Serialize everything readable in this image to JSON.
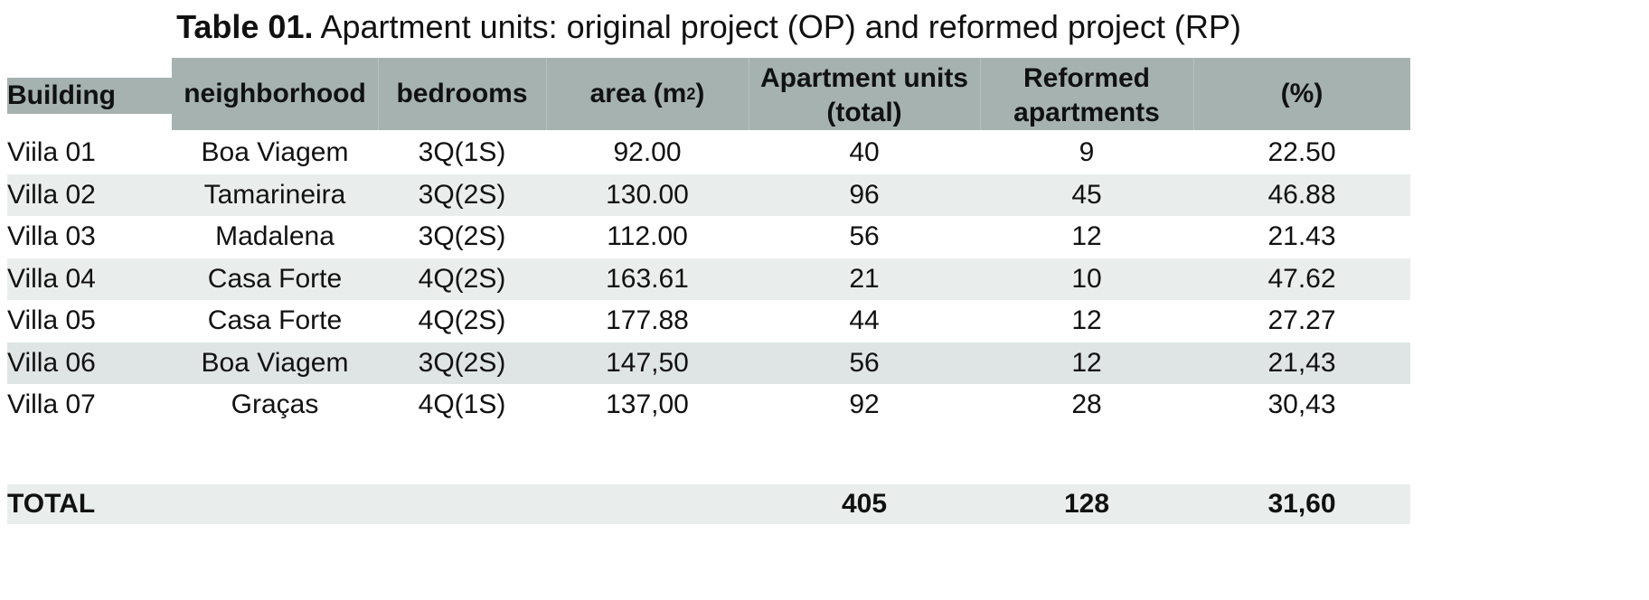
{
  "caption": {
    "label": "Table 01.",
    "text": "Apartment units: original project (OP) and reformed project (RP)"
  },
  "table": {
    "headers": {
      "building": "Building",
      "neighborhood": "neighborhood",
      "bedrooms": "bedrooms",
      "area": "area (m",
      "area_sup": "2",
      "area_close": ")",
      "units_line1": "Apartment units",
      "units_line2": "(total)",
      "reformed_line1": "Reformed",
      "reformed_line2": "apartments",
      "percent": "(%)"
    },
    "rows": [
      {
        "building": "Viila 01",
        "neighborhood": "Boa Viagem",
        "bedrooms": "3Q(1S)",
        "area": "92.00",
        "units": "40",
        "reformed": "9",
        "percent": "22.50"
      },
      {
        "building": "Villa 02",
        "neighborhood": "Tamarineira",
        "bedrooms": "3Q(2S)",
        "area": "130.00",
        "units": "96",
        "reformed": "45",
        "percent": "46.88"
      },
      {
        "building": "Villa 03",
        "neighborhood": "Madalena",
        "bedrooms": "3Q(2S)",
        "area": "112.00",
        "units": "56",
        "reformed": "12",
        "percent": "21.43"
      },
      {
        "building": "Villa 04",
        "neighborhood": "Casa Forte",
        "bedrooms": "4Q(2S)",
        "area": "163.61",
        "units": "21",
        "reformed": "10",
        "percent": "47.62"
      },
      {
        "building": "Villa 05",
        "neighborhood": "Casa Forte",
        "bedrooms": "4Q(2S)",
        "area": "177.88",
        "units": "44",
        "reformed": "12",
        "percent": "27.27"
      },
      {
        "building": "Villa 06",
        "neighborhood": "Boa Viagem",
        "bedrooms": "3Q(2S)",
        "area": "147,50",
        "units": "56",
        "reformed": "12",
        "percent": "21,43"
      },
      {
        "building": "Villa 07",
        "neighborhood": "Graças",
        "bedrooms": "4Q(1S)",
        "area": "137,00",
        "units": "92",
        "reformed": "28",
        "percent": "30,43"
      }
    ],
    "total": {
      "label": "TOTAL",
      "units": "405",
      "reformed": "128",
      "percent": "31,60"
    }
  },
  "colors": {
    "header_bg": "#a5b2b0",
    "stripe": "#e9eeed"
  }
}
